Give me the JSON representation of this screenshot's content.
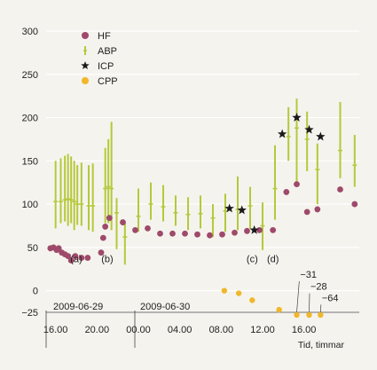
{
  "chart_data": {
    "type": "scatter",
    "xlabel": "Tid, timmar",
    "ylim": [
      -25,
      300
    ],
    "yticks": [
      "300",
      "250",
      "200",
      "150",
      "100",
      "50",
      "0",
      "−25"
    ],
    "ytick_values": [
      300,
      250,
      200,
      150,
      100,
      50,
      0,
      -25
    ],
    "dates": [
      {
        "label": "2009-06-29",
        "x": 13.3
      },
      {
        "label": "2009-06-30",
        "x": 24
      }
    ],
    "xticks": [
      {
        "label": "16.00",
        "x": 16
      },
      {
        "label": "20.00",
        "x": 20
      },
      {
        "label": "00.00",
        "x": 24
      },
      {
        "label": "04.00",
        "x": 28
      },
      {
        "label": "08.00",
        "x": 32
      },
      {
        "label": "12.00",
        "x": 36
      },
      {
        "label": "16.00",
        "x": 40
      }
    ],
    "legend": [
      {
        "key": "hf",
        "label": "HF",
        "marker": "circle",
        "color": "#9e4a6a"
      },
      {
        "key": "abp",
        "label": "ABP",
        "marker": "bar",
        "color": "#b5c93a"
      },
      {
        "key": "icp",
        "label": "ICP",
        "marker": "star",
        "color": "#1a1a1a"
      },
      {
        "key": "cpp",
        "label": "CPP",
        "marker": "circle",
        "color": "#f0b72a"
      }
    ],
    "series": [
      {
        "key": "hf",
        "points": [
          {
            "x": 15.5,
            "y": 49
          },
          {
            "x": 15.8,
            "y": 50
          },
          {
            "x": 16.1,
            "y": 47
          },
          {
            "x": 16.3,
            "y": 49
          },
          {
            "x": 16.6,
            "y": 44
          },
          {
            "x": 16.9,
            "y": 42
          },
          {
            "x": 17.2,
            "y": 40
          },
          {
            "x": 17.5,
            "y": 35
          },
          {
            "x": 17.9,
            "y": 40
          },
          {
            "x": 18.5,
            "y": 38
          },
          {
            "x": 19.1,
            "y": 38
          },
          {
            "x": 20.4,
            "y": 44
          },
          {
            "x": 20.6,
            "y": 61
          },
          {
            "x": 20.8,
            "y": 74
          },
          {
            "x": 21.2,
            "y": 84
          },
          {
            "x": 22.5,
            "y": 79
          },
          {
            "x": 23.7,
            "y": 70
          },
          {
            "x": 24.9,
            "y": 72
          },
          {
            "x": 26.1,
            "y": 66
          },
          {
            "x": 27.3,
            "y": 66
          },
          {
            "x": 28.5,
            "y": 66
          },
          {
            "x": 29.7,
            "y": 65
          },
          {
            "x": 30.9,
            "y": 64
          },
          {
            "x": 32.1,
            "y": 65
          },
          {
            "x": 33.3,
            "y": 67
          },
          {
            "x": 34.5,
            "y": 69
          },
          {
            "x": 35.7,
            "y": 70
          },
          {
            "x": 37.0,
            "y": 70
          },
          {
            "x": 38.3,
            "y": 114
          },
          {
            "x": 39.3,
            "y": 123
          },
          {
            "x": 40.3,
            "y": 91
          },
          {
            "x": 41.3,
            "y": 94
          },
          {
            "x": 43.5,
            "y": 117
          },
          {
            "x": 44.9,
            "y": 100
          }
        ]
      },
      {
        "key": "abp",
        "ranges": [
          {
            "x": 16.0,
            "low": 72,
            "high": 150,
            "mid": 103
          },
          {
            "x": 16.5,
            "low": 78,
            "high": 153,
            "mid": 103
          },
          {
            "x": 16.9,
            "low": 80,
            "high": 156,
            "mid": 105
          },
          {
            "x": 17.2,
            "low": 75,
            "high": 158,
            "mid": 106
          },
          {
            "x": 17.5,
            "low": 78,
            "high": 155,
            "mid": 105
          },
          {
            "x": 17.8,
            "low": 70,
            "high": 150,
            "mid": 103
          },
          {
            "x": 18.1,
            "low": 76,
            "high": 145,
            "mid": 100
          },
          {
            "x": 18.5,
            "low": 75,
            "high": 148,
            "mid": 100
          },
          {
            "x": 19.2,
            "low": 70,
            "high": 145,
            "mid": 98
          },
          {
            "x": 19.6,
            "low": 68,
            "high": 147,
            "mid": 98
          },
          {
            "x": 20.8,
            "low": 78,
            "high": 165,
            "mid": 118
          },
          {
            "x": 21.1,
            "low": 78,
            "high": 175,
            "mid": 120
          },
          {
            "x": 21.4,
            "low": 70,
            "high": 195,
            "mid": 118
          },
          {
            "x": 21.9,
            "low": 48,
            "high": 107,
            "mid": 90
          },
          {
            "x": 22.7,
            "low": 30,
            "high": 78,
            "mid": 62
          },
          {
            "x": 24.0,
            "low": 68,
            "high": 118,
            "mid": 86
          },
          {
            "x": 25.2,
            "low": 82,
            "high": 125,
            "mid": 100
          },
          {
            "x": 26.4,
            "low": 80,
            "high": 122,
            "mid": 97
          },
          {
            "x": 27.6,
            "low": 75,
            "high": 110,
            "mid": 90
          },
          {
            "x": 28.8,
            "low": 70,
            "high": 108,
            "mid": 88
          },
          {
            "x": 30.0,
            "low": 72,
            "high": 110,
            "mid": 89
          },
          {
            "x": 31.2,
            "low": 62,
            "high": 100,
            "mid": 84
          },
          {
            "x": 32.4,
            "low": 68,
            "high": 112,
            "mid": 92
          },
          {
            "x": 33.6,
            "low": 70,
            "high": 132,
            "mid": 94
          },
          {
            "x": 34.8,
            "low": 72,
            "high": 120,
            "mid": 98
          },
          {
            "x": 36.0,
            "low": 47,
            "high": 102,
            "mid": 75
          },
          {
            "x": 37.2,
            "low": 82,
            "high": 168,
            "mid": 118
          },
          {
            "x": 38.5,
            "low": 150,
            "high": 212,
            "mid": 178
          },
          {
            "x": 39.3,
            "low": 125,
            "high": 222,
            "mid": 188
          },
          {
            "x": 40.3,
            "low": 138,
            "high": 207,
            "mid": 175
          },
          {
            "x": 41.3,
            "low": 100,
            "high": 170,
            "mid": 140
          },
          {
            "x": 43.5,
            "low": 130,
            "high": 218,
            "mid": 162
          },
          {
            "x": 44.9,
            "low": 120,
            "high": 180,
            "mid": 145
          }
        ]
      },
      {
        "key": "icp",
        "points": [
          {
            "x": 32.8,
            "y": 95
          },
          {
            "x": 34.0,
            "y": 93
          },
          {
            "x": 35.2,
            "y": 70
          },
          {
            "x": 37.9,
            "y": 181
          },
          {
            "x": 39.3,
            "y": 200
          },
          {
            "x": 40.5,
            "y": 186
          },
          {
            "x": 41.6,
            "y": 178
          }
        ]
      },
      {
        "key": "cpp",
        "points": [
          {
            "x": 32.3,
            "y": 0
          },
          {
            "x": 33.7,
            "y": -3
          },
          {
            "x": 35.0,
            "y": -11
          },
          {
            "x": 37.6,
            "y": -22
          },
          {
            "x": 39.3,
            "y": -28
          },
          {
            "x": 40.5,
            "y": -28
          },
          {
            "x": 41.6,
            "y": -28
          }
        ]
      }
    ],
    "annotations": [
      {
        "text": "(a)",
        "x": 18.0,
        "y": 33,
        "anchor": "middle"
      },
      {
        "text": "(b)",
        "x": 21.0,
        "y": 33,
        "anchor": "middle"
      },
      {
        "text": "(c)",
        "x": 35.0,
        "y": 33,
        "anchor": "middle"
      },
      {
        "text": "(d)",
        "x": 37.0,
        "y": 33,
        "anchor": "middle"
      }
    ],
    "callouts": [
      {
        "text": "−31",
        "tx": 39.8,
        "ty": 15,
        "px": 39.3,
        "py": -28
      },
      {
        "text": "−28",
        "tx": 40.8,
        "ty": 1,
        "px": 40.5,
        "py": -28
      },
      {
        "text": "−64",
        "tx": 41.9,
        "ty": -12,
        "px": 41.6,
        "py": -28
      }
    ]
  }
}
